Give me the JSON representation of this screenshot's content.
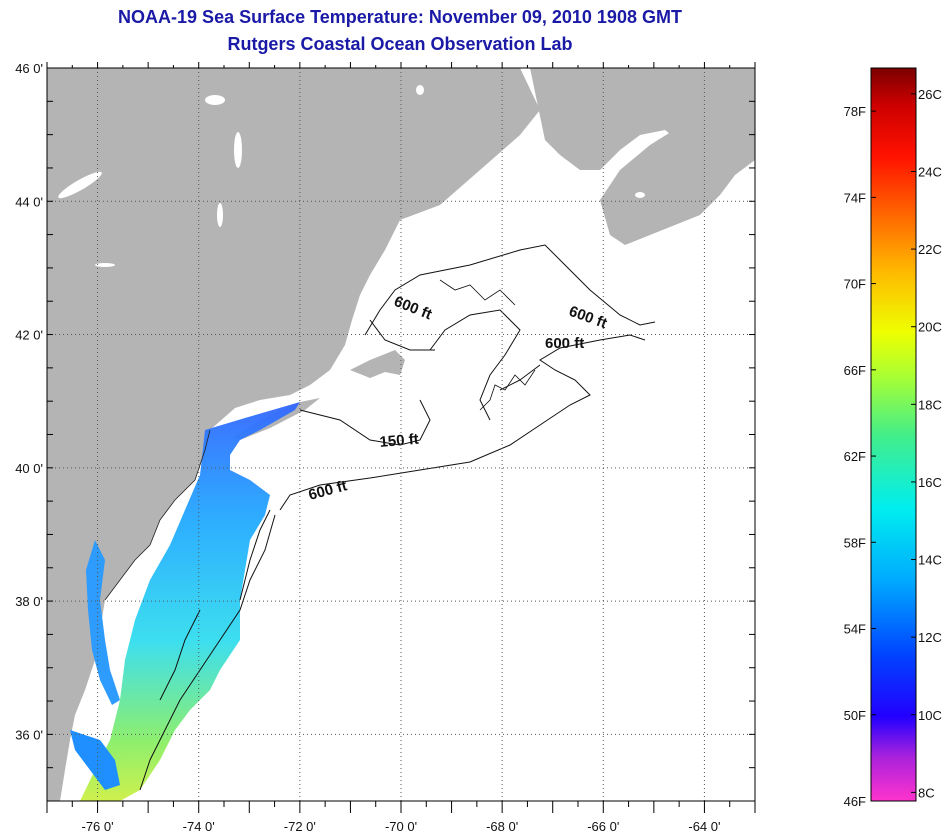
{
  "title": "NOAA-19 Sea Surface Temperature:  November 09, 2010 1908 GMT",
  "subtitle": "Rutgers Coastal Ocean Observation Lab",
  "map": {
    "lat_range": [
      35,
      46
    ],
    "lon_range": [
      -77,
      -63
    ],
    "lat_labels": [
      {
        "value": 46,
        "text": "46 0'"
      },
      {
        "value": 44,
        "text": "44 0'"
      },
      {
        "value": 42,
        "text": "42 0'"
      },
      {
        "value": 40,
        "text": "40 0'"
      },
      {
        "value": 38,
        "text": "38 0'"
      },
      {
        "value": 36,
        "text": "36 0'"
      }
    ],
    "lon_labels": [
      {
        "value": -76,
        "text": "-76 0'"
      },
      {
        "value": -74,
        "text": "-74 0'"
      },
      {
        "value": -72,
        "text": "-72 0'"
      },
      {
        "value": -70,
        "text": "-70 0'"
      },
      {
        "value": -68,
        "text": "-68 0'"
      },
      {
        "value": -66,
        "text": "-66 0'"
      },
      {
        "value": -64,
        "text": "-64 0'"
      }
    ],
    "contour_labels": [
      "600 ft",
      "600 ft",
      "600 ft",
      "150 ft",
      "600 ft"
    ],
    "colors": {
      "land": "#b4b4b4",
      "ocean": "#ffffff",
      "grid": "#555555"
    }
  },
  "colorbar": {
    "fahrenheit": [
      "78F",
      "74F",
      "70F",
      "66F",
      "62F",
      "58F",
      "54F",
      "50F",
      "46F"
    ],
    "celsius": [
      "26C",
      "24C",
      "22C",
      "20C",
      "18C",
      "16C",
      "14C",
      "12C",
      "10C",
      "8C"
    ]
  }
}
